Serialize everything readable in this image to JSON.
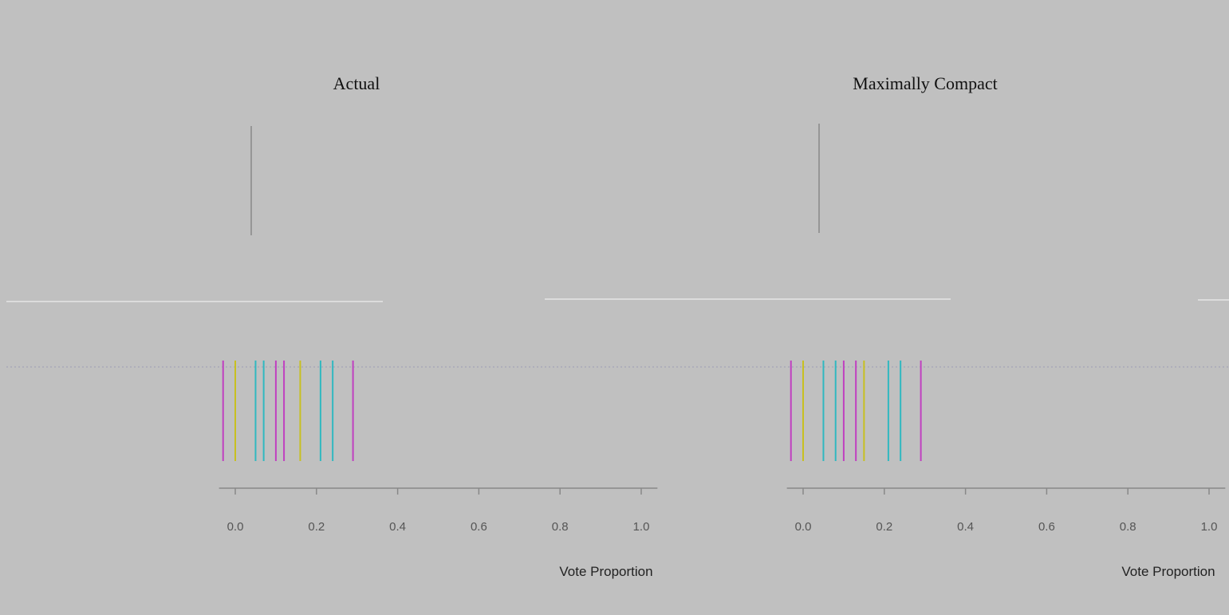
{
  "chart_data": [
    {
      "type": "rug",
      "title": "Actual",
      "x_label": "Vote Proportion",
      "xlim": [
        -0.04,
        1.04
      ],
      "xticks": [
        {
          "value": 0,
          "label": "0.0"
        },
        {
          "value": 0.2,
          "label": "0.2"
        },
        {
          "value": 0.4,
          "label": "0.4"
        },
        {
          "value": 0.6,
          "label": "0.6"
        },
        {
          "value": 0.8,
          "label": "0.8"
        },
        {
          "value": 1,
          "label": "1.0"
        }
      ],
      "values": [
        -0.03,
        0.0,
        0.05,
        0.07,
        0.1,
        0.12,
        0.16,
        0.21,
        0.24,
        0.29
      ],
      "colors": [
        "#c040c0",
        "#c8c020",
        "#30b8c0",
        "#30b8c0",
        "#c040c0",
        "#c040c0",
        "#c8c020",
        "#30b8c0",
        "#30b8c0",
        "#c040c0"
      ]
    },
    {
      "type": "rug",
      "title": "Maximally Compact",
      "x_label": "Vote Proportion",
      "xlim": [
        -0.04,
        1.04
      ],
      "xticks": [
        {
          "value": 0,
          "label": "0.0"
        },
        {
          "value": 0.2,
          "label": "0.2"
        },
        {
          "value": 0.4,
          "label": "0.4"
        },
        {
          "value": 0.6,
          "label": "0.6"
        },
        {
          "value": 0.8,
          "label": "0.8"
        },
        {
          "value": 1,
          "label": "1.0"
        }
      ],
      "values": [
        -0.03,
        0.0,
        0.05,
        0.08,
        0.1,
        0.13,
        0.15,
        0.21,
        0.24,
        0.29
      ],
      "colors": [
        "#c040c0",
        "#c8c020",
        "#30b8c0",
        "#30b8c0",
        "#c040c0",
        "#c040c0",
        "#c8c020",
        "#30b8c0",
        "#30b8c0",
        "#c040c0"
      ]
    }
  ]
}
